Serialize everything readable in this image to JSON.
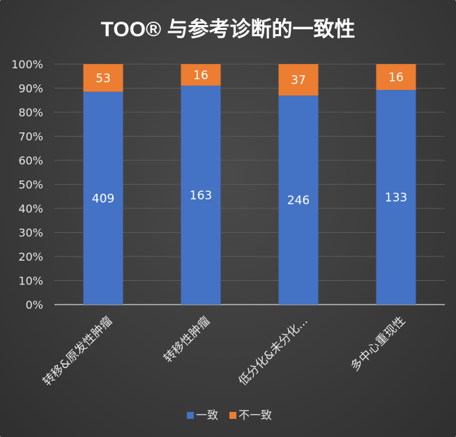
{
  "chart_data": {
    "type": "bar",
    "stacked": "percent",
    "title": "TOO® 与参考诊断的一致性",
    "categories": [
      "转移&原发性肿瘤",
      "转移性肿瘤",
      "低分化&未分化...",
      "多中心重现性"
    ],
    "series": [
      {
        "name": "一致",
        "values": [
          409,
          163,
          246,
          133
        ],
        "color": "#4472C4"
      },
      {
        "name": "不一致",
        "values": [
          53,
          16,
          37,
          16
        ],
        "color": "#ED7D31"
      }
    ],
    "yticks": [
      "0%",
      "10%",
      "20%",
      "30%",
      "40%",
      "50%",
      "60%",
      "70%",
      "80%",
      "90%",
      "100%"
    ],
    "ylim": [
      0,
      100
    ],
    "grid": true,
    "legend": "bottom"
  }
}
